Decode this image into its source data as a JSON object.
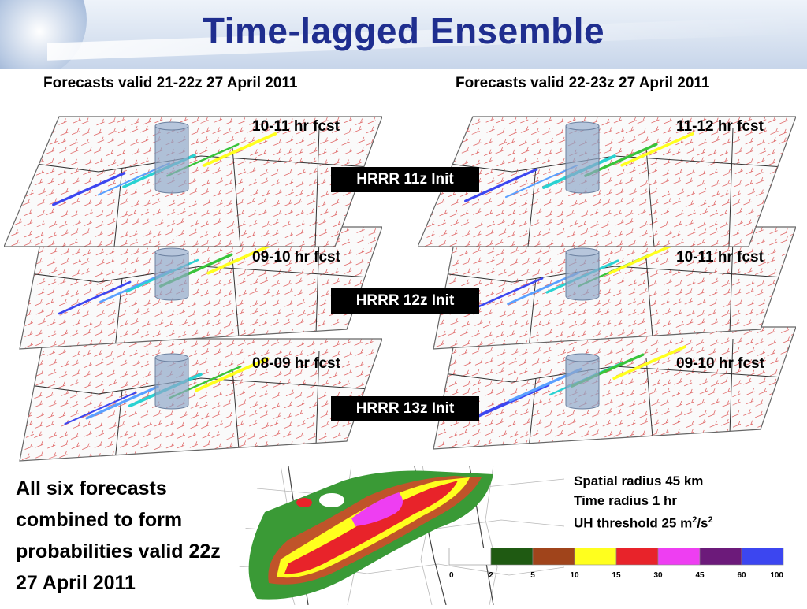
{
  "slide": {
    "title": "Time-lagged Ensemble",
    "col_left": "Forecasts valid 21-22z 27 April 2011",
    "col_right": "Forecasts valid 22-23z 27 April 2011",
    "rows": [
      {
        "init": "HRRR 11z Init",
        "left_fcst": "10-11 hr fcst",
        "right_fcst": "11-12 hr fcst"
      },
      {
        "init": "HRRR 12z Init",
        "left_fcst": "09-10 hr fcst",
        "right_fcst": "10-11 hr fcst"
      },
      {
        "init": "HRRR 13z Init",
        "left_fcst": "08-09 hr fcst",
        "right_fcst": "09-10 hr fcst"
      }
    ],
    "combo_text": "All six forecasts combined to form probabilities valid 22z 27 April 2011",
    "params": {
      "spatial": "Spatial radius 45 km",
      "time": "Time radius 1 hr",
      "uh_prefix": "UH threshold 25 m",
      "uh_exp1": "2",
      "uh_mid": "/s",
      "uh_exp2": "2"
    },
    "colorbar": {
      "ticks": [
        "0",
        "2",
        "5",
        "10",
        "15",
        "30",
        "45",
        "60",
        "100"
      ],
      "colors": [
        "#ffffff",
        "#1f5a12",
        "#a0441b",
        "#ffff1e",
        "#e8232a",
        "#ee3ef2",
        "#6c1a7a",
        "#3c46f0"
      ]
    },
    "colors": {
      "title": "#1f2e8f",
      "wind_barb": "#e06a6a",
      "cylinder": "#8ea6c8"
    }
  }
}
